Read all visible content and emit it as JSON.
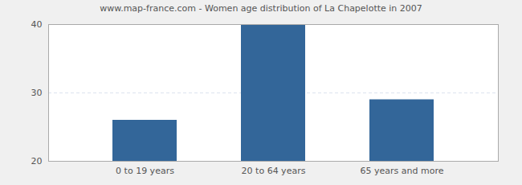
{
  "chart_data": {
    "type": "bar",
    "title": "www.map-france.com - Women age distribution of La Chapelotte in 2007",
    "categories": [
      "0 to 19 years",
      "20 to 64 years",
      "65 years and more"
    ],
    "values": [
      26,
      40,
      29
    ],
    "color": "#336699",
    "ylim": [
      20,
      40
    ],
    "yticks": [
      20,
      30,
      40
    ],
    "grid": true
  }
}
